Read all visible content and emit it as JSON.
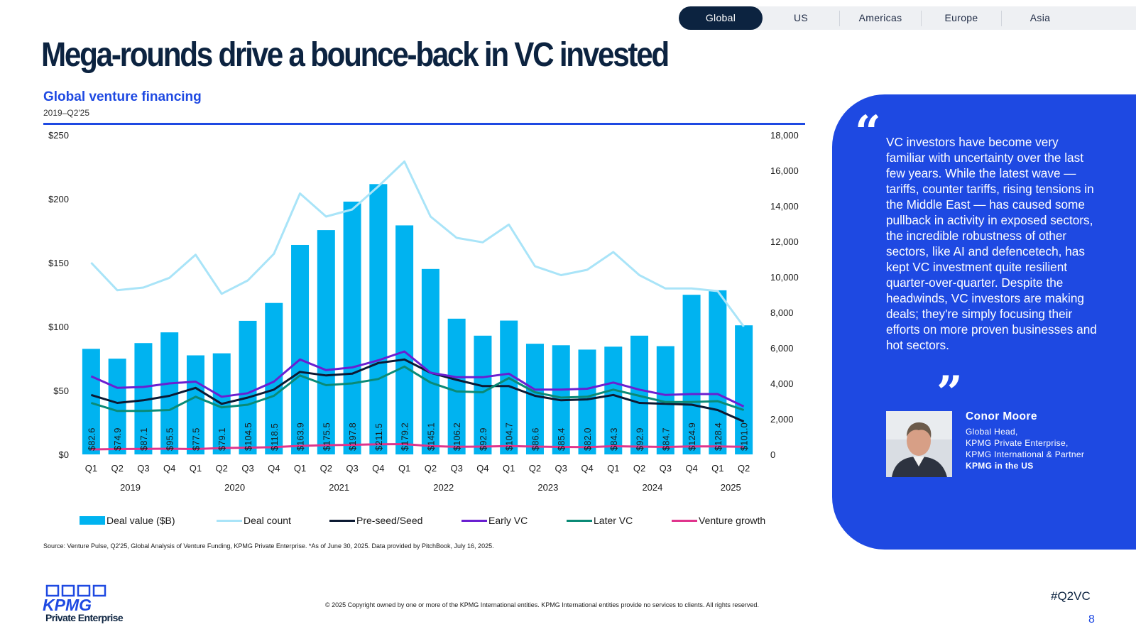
{
  "nav": {
    "tabs": [
      {
        "label": "Global",
        "active": true
      },
      {
        "label": "US",
        "active": false
      },
      {
        "label": "Americas",
        "active": false
      },
      {
        "label": "Europe",
        "active": false
      },
      {
        "label": "Asia",
        "active": false
      }
    ]
  },
  "page": {
    "title": "Mega-rounds drive a bounce-back in VC invested",
    "source": "Source: Venture Pulse, Q2'25, Global Analysis of Venture Funding, KPMG Private Enterprise. *As of June 30, 2025. Data provided by PitchBook, July 16, 2025.",
    "copyright": "© 2025 Copyright owned by one or more of the KPMG International entities. KPMG International entities provide no services to clients. All rights reserved.",
    "hashtag": "#Q2VC",
    "page_number": "8"
  },
  "brand": {
    "logo_text": "KPMG",
    "logo_sub": "Private Enterprise"
  },
  "colors": {
    "navy": "#0c2340",
    "blue": "#1e49e2",
    "deal_value": "#00b3f0",
    "deal_count": "#a9e4f8",
    "pre_seed": "#0c1a33",
    "early_vc": "#6a1fd1",
    "later_vc": "#0a8a76",
    "venture_growth": "#e0348c"
  },
  "quote": {
    "open_mark": "“",
    "close_mark": "”",
    "text": "VC investors have become very familiar with uncertainty over the last few years. While the latest wave — tariffs, counter tariffs, rising tensions in the Middle East — has caused some pullback in activity in exposed sectors, the incredible robustness of other sectors, like AI and defencetech, has kept VC investment quite resilient quarter-over-quarter. Despite the headwinds, VC investors are making deals; they're simply focusing their efforts on more proven businesses and hot sectors.",
    "name": "Conor Moore",
    "role_1": "Global Head,",
    "role_2": "KPMG Private Enterprise,",
    "role_3": "KPMG International & Partner",
    "role_4": "KPMG in the US"
  },
  "chart_data": {
    "type": "bar",
    "title": "Global venture financing",
    "subtitle": "2019–Q2'25",
    "categories": [
      "Q1",
      "Q2",
      "Q3",
      "Q4",
      "Q1",
      "Q2",
      "Q3",
      "Q4",
      "Q1",
      "Q2",
      "Q3",
      "Q4",
      "Q1",
      "Q2",
      "Q3",
      "Q4",
      "Q1",
      "Q2",
      "Q3",
      "Q4",
      "Q1",
      "Q2",
      "Q3",
      "Q4",
      "Q1",
      "Q2"
    ],
    "years": [
      {
        "label": "2019",
        "start": 0,
        "end": 3
      },
      {
        "label": "2020",
        "start": 4,
        "end": 7
      },
      {
        "label": "2021",
        "start": 8,
        "end": 11
      },
      {
        "label": "2022",
        "start": 12,
        "end": 15
      },
      {
        "label": "2023",
        "start": 16,
        "end": 19
      },
      {
        "label": "2024",
        "start": 20,
        "end": 23
      },
      {
        "label": "2025",
        "start": 24,
        "end": 25
      }
    ],
    "left_axis": {
      "ticks": [
        "$0",
        "$50",
        "$100",
        "$150",
        "$200",
        "$250"
      ],
      "range": [
        0,
        250
      ]
    },
    "right_axis": {
      "ticks": [
        "0",
        "2,000",
        "4,000",
        "6,000",
        "8,000",
        "10,000",
        "12,000",
        "14,000",
        "16,000",
        "18,000"
      ],
      "range": [
        0,
        18000
      ]
    },
    "series": [
      {
        "name": "Deal value ($B)",
        "type": "bar",
        "axis": "left",
        "values": [
          82.6,
          74.9,
          87.1,
          95.5,
          77.5,
          79.1,
          104.5,
          118.5,
          163.9,
          175.5,
          197.8,
          211.5,
          179.2,
          145.1,
          106.2,
          92.9,
          104.7,
          86.6,
          85.4,
          82.0,
          84.3,
          92.9,
          84.7,
          124.9,
          128.4,
          101.0
        ],
        "labels": [
          "$82.6",
          "$74.9",
          "$87.1",
          "$95.5",
          "$77.5",
          "$79.1",
          "$104.5",
          "$118.5",
          "$163.9",
          "$175.5",
          "$197.8",
          "$211.5",
          "$179.2",
          "$145.1",
          "$106.2",
          "$92.9",
          "$104.7",
          "$86.6",
          "$85.4",
          "$82.0",
          "$84.3",
          "$92.9",
          "$84.7",
          "$124.9",
          "$128.4",
          "$101.0"
        ]
      },
      {
        "name": "Deal count",
        "type": "line",
        "axis": "right",
        "values": [
          10800,
          9250,
          9400,
          9950,
          11250,
          9050,
          9800,
          11300,
          14700,
          13400,
          13800,
          15100,
          16500,
          13400,
          12200,
          11950,
          12950,
          10600,
          10100,
          10400,
          11400,
          10100,
          9350,
          9350,
          9200,
          7200
        ]
      },
      {
        "name": "Pre-seed/Seed",
        "type": "line",
        "axis": "right",
        "values": [
          3350,
          2900,
          3050,
          3300,
          3750,
          2850,
          3200,
          3650,
          4650,
          4450,
          4550,
          5150,
          5350,
          4600,
          4200,
          3850,
          3850,
          3300,
          3050,
          3100,
          3350,
          2900,
          2850,
          2800,
          2500,
          1850
        ]
      },
      {
        "name": "Early VC",
        "type": "line",
        "axis": "right",
        "values": [
          4400,
          3750,
          3800,
          4000,
          4100,
          3250,
          3450,
          4100,
          5350,
          4750,
          4900,
          5300,
          5800,
          4600,
          4350,
          4350,
          4550,
          3650,
          3650,
          3700,
          4050,
          3650,
          3350,
          3400,
          3400,
          2700
        ]
      },
      {
        "name": "Later VC",
        "type": "line",
        "axis": "right",
        "values": [
          2900,
          2450,
          2450,
          2500,
          3250,
          2650,
          2800,
          3300,
          4450,
          3900,
          4000,
          4250,
          4950,
          4050,
          3550,
          3500,
          4300,
          3500,
          3200,
          3250,
          3650,
          3300,
          2950,
          2950,
          3000,
          2500
        ]
      },
      {
        "name": "Venture growth",
        "type": "line",
        "axis": "right",
        "values": [
          280,
          300,
          310,
          320,
          300,
          360,
          380,
          410,
          480,
          520,
          540,
          570,
          580,
          470,
          430,
          440,
          470,
          440,
          420,
          410,
          460,
          440,
          420,
          450,
          450,
          430
        ]
      }
    ],
    "legend": [
      "Deal value ($B)",
      "Deal count",
      "Pre-seed/Seed",
      "Early VC",
      "Later VC",
      "Venture growth"
    ],
    "legend_position": "bottom",
    "grid": false
  }
}
